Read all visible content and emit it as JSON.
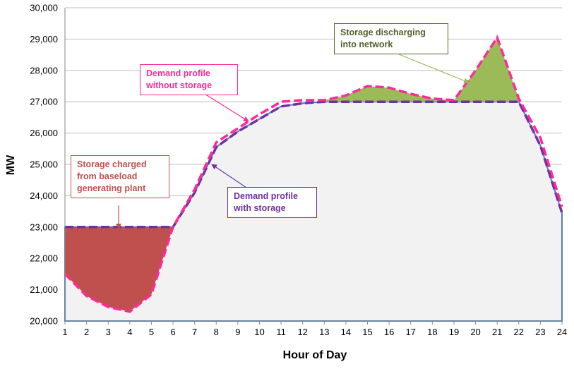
{
  "chart_data": {
    "type": "area",
    "xlabel": "Hour of Day",
    "ylabel": "MW",
    "xlim": [
      1,
      24
    ],
    "ylim": [
      20000,
      30000
    ],
    "x_ticks": [
      "1",
      "2",
      "3",
      "4",
      "5",
      "6",
      "7",
      "8",
      "9",
      "10",
      "11",
      "12",
      "13",
      "14",
      "15",
      "16",
      "17",
      "18",
      "19",
      "20",
      "21",
      "22",
      "23",
      "24"
    ],
    "y_ticks": [
      "20,000",
      "21,000",
      "22,000",
      "23,000",
      "24,000",
      "25,000",
      "26,000",
      "27,000",
      "28,000",
      "29,000",
      "30,000"
    ],
    "grid": true,
    "series": [
      {
        "name": "Demand profile without storage",
        "x": [
          1,
          2,
          3,
          4,
          5,
          6,
          7,
          8,
          9,
          10,
          11,
          12,
          13,
          14,
          15,
          16,
          17,
          18,
          19,
          20,
          21,
          22,
          23,
          24
        ],
        "values": [
          21500,
          20800,
          20450,
          20300,
          20850,
          23000,
          24200,
          25700,
          26150,
          26600,
          27000,
          27050,
          27050,
          27200,
          27500,
          27450,
          27250,
          27100,
          27050,
          28000,
          29050,
          27100,
          25850,
          23650
        ]
      },
      {
        "name": "Demand profile with storage",
        "x": [
          1,
          2,
          3,
          4,
          5,
          6,
          7,
          8,
          9,
          10,
          11,
          12,
          13,
          14,
          15,
          16,
          17,
          18,
          19,
          20,
          21,
          22,
          23,
          24
        ],
        "values": [
          23000,
          23000,
          23000,
          23000,
          23000,
          23000,
          24100,
          25550,
          26050,
          26450,
          26850,
          26950,
          27000,
          27000,
          27000,
          27000,
          27000,
          27000,
          27000,
          27000,
          27000,
          27000,
          25600,
          23450
        ]
      }
    ],
    "annotations": [
      {
        "id": "charged",
        "lines": [
          "Storage charged",
          "from baseload",
          "generating plant"
        ],
        "color": "#c0504d"
      },
      {
        "id": "without",
        "lines": [
          "Demand profile",
          "without storage"
        ],
        "color": "#ff2a9a"
      },
      {
        "id": "with",
        "lines": [
          "Demand profile",
          "with storage"
        ],
        "color": "#7030a0"
      },
      {
        "id": "discharging",
        "lines": [
          "Storage discharging",
          "into network"
        ],
        "color": "#4f6228"
      }
    ],
    "colors": {
      "background_area": "#f2f2f2",
      "area_outline": "#4f81bd",
      "charging_fill": "#c0504d",
      "discharging_fill": "#9bbb59",
      "without_storage_line": "#ff2a9a",
      "with_storage_line": "#7030a0",
      "gridline": "#bfbfbf"
    }
  }
}
